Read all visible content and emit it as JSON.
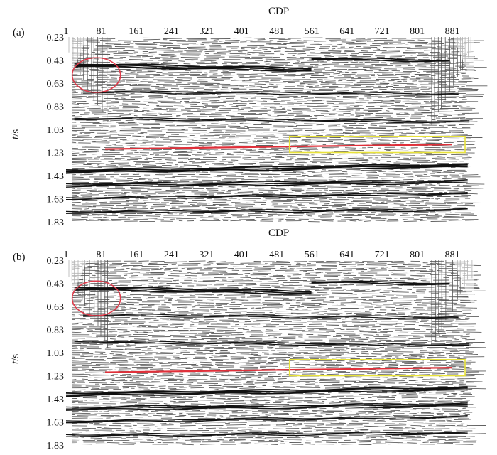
{
  "x_axis_title": "CDP",
  "y_axis_title_italic": "t",
  "y_axis_title_rest": "/s",
  "x_ticks": [
    "1",
    "81",
    "161",
    "241",
    "321",
    "401",
    "481",
    "561",
    "641",
    "721",
    "801",
    "881"
  ],
  "y_ticks": [
    "0.23",
    "0.43",
    "0.63",
    "0.83",
    "1.03",
    "1.23",
    "1.43",
    "1.63",
    "1.83"
  ],
  "panels": [
    {
      "label": "(a)"
    },
    {
      "label": "(b)"
    }
  ],
  "colors": {
    "horizon_line": "#e0303a",
    "ellipse": "#e03a4a",
    "box": "#e8e23a",
    "trace_dark": "#111111",
    "background": "#ffffff"
  },
  "annotations": {
    "ellipse_cdp_range": [
      15,
      125
    ],
    "ellipse_time_range": [
      0.41,
      0.71
    ],
    "horizon_cdp_range": [
      90,
      880
    ],
    "horizon_time": [
      1.2,
      1.16
    ],
    "box_cdp_range": [
      510,
      910
    ],
    "box_time_range": [
      1.09,
      1.23
    ]
  }
}
